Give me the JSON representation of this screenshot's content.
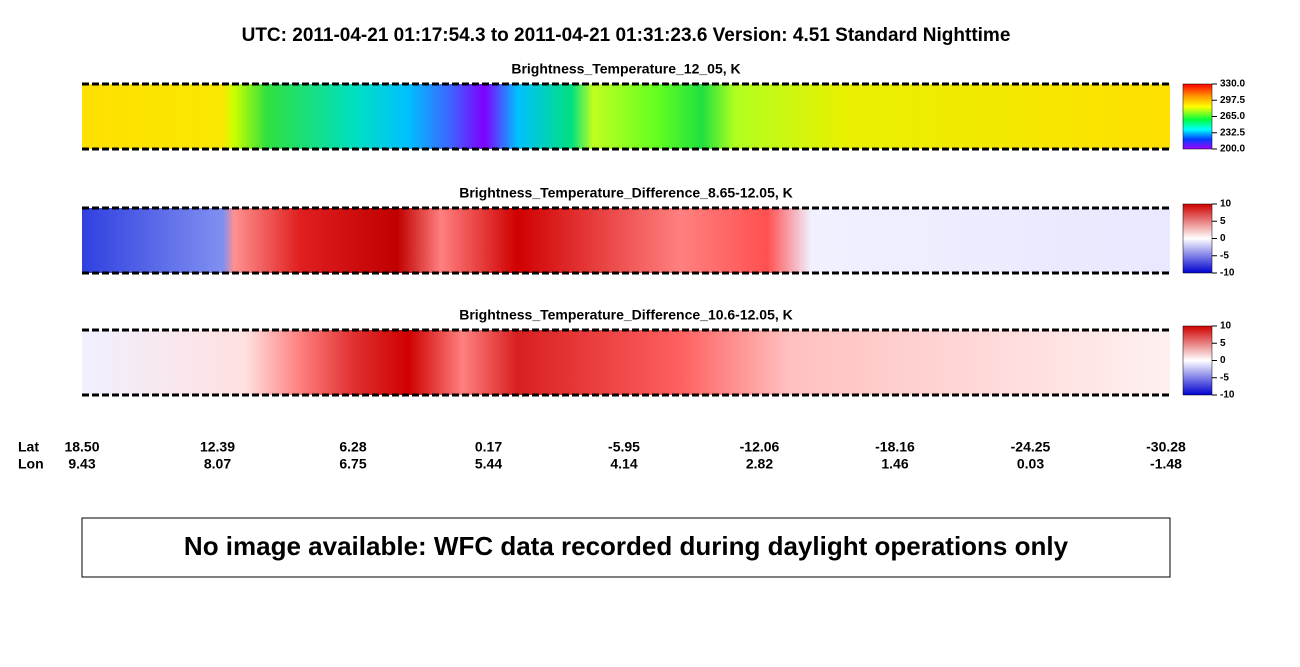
{
  "header": {
    "title": "UTC:  2011-04-21   01:17:54.3  to  2011-04-21   01:31:23.6    Version: 4.51  Standard Nighttime"
  },
  "panels": [
    {
      "title": "Brightness_Temperature_12_05, K",
      "colorbar": [
        "330.0",
        "297.5",
        "265.0",
        "232.5",
        "200.0"
      ]
    },
    {
      "title": "Brightness_Temperature_Difference_8.65-12.05, K",
      "colorbar": [
        "10",
        "5",
        "0",
        "-5",
        "-10"
      ]
    },
    {
      "title": "Brightness_Temperature_Difference_10.6-12.05, K",
      "colorbar": [
        "10",
        "5",
        "0",
        "-5",
        "-10"
      ]
    }
  ],
  "axis": {
    "lat_label": "Lat",
    "lon_label": "Lon",
    "lat": [
      "18.50",
      "12.39",
      "6.28",
      "0.17",
      "-5.95",
      "-12.06",
      "-18.16",
      "-24.25",
      "-30.28"
    ],
    "lon": [
      "9.43",
      "8.07",
      "6.75",
      "5.44",
      "4.14",
      "2.82",
      "1.46",
      "0.03",
      "-1.48"
    ]
  },
  "message": "No image available: WFC data recorded during daylight operations only"
}
